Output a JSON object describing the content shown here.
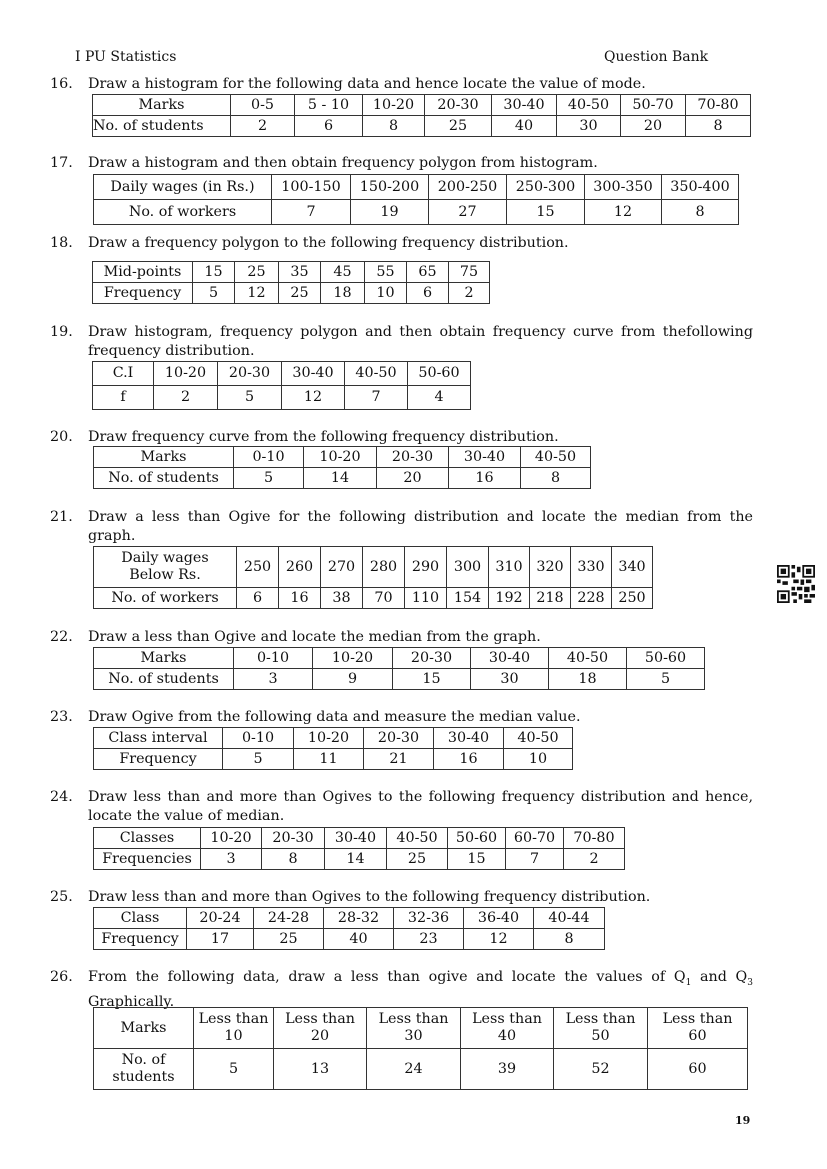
{
  "header": {
    "left": "I PU Statistics",
    "right": "Question Bank"
  },
  "questions": [
    {
      "number": "16.",
      "text": "Draw a histogram for the following data and hence locate the value of mode.",
      "rows": [
        [
          "Marks",
          "0-5",
          "5 - 10",
          "10-20",
          "20-30",
          "30-40",
          "40-50",
          "50-70",
          "70-80"
        ],
        [
          "No.  of  students",
          "2",
          "6",
          "8",
          "25",
          "40",
          "30",
          "20",
          "8"
        ]
      ]
    },
    {
      "number": "17.",
      "text": "Draw a histogram and then obtain frequency polygon from histogram.",
      "rows": [
        [
          "Daily wages (in Rs.)",
          "100-150",
          "150-200",
          "200-250",
          "250-300",
          "300-350",
          "350-400"
        ],
        [
          "No. of workers",
          "7",
          "19",
          "27",
          "15",
          "12",
          "8"
        ]
      ]
    },
    {
      "number": "18.",
      "text": "Draw a frequency polygon to the following frequency distribution.",
      "rows": [
        [
          "Mid-points",
          "15",
          "25",
          "35",
          "45",
          "55",
          "65",
          "75"
        ],
        [
          "Frequency",
          "5",
          "12",
          "25",
          "18",
          "10",
          "6",
          "2"
        ]
      ]
    },
    {
      "number": "19.",
      "text": "Draw histogram, frequency polygon and then obtain frequency curve from thefollowing frequency distribution.",
      "rows": [
        [
          "C.I",
          "10-20",
          "20-30",
          "30-40",
          "40-50",
          "50-60"
        ],
        [
          "f",
          "2",
          "5",
          "12",
          "7",
          "4"
        ]
      ]
    },
    {
      "number": "20.",
      "text": "Draw frequency curve from the following frequency distribution.",
      "rows": [
        [
          "Marks",
          "0-10",
          "10-20",
          "20-30",
          "30-40",
          "40-50"
        ],
        [
          "No. of students",
          "5",
          "14",
          "20",
          "16",
          "8"
        ]
      ]
    },
    {
      "number": "21.",
      "text": "Draw a less than Ogive for the following distribution and locate the median from the graph.",
      "rows": [
        [
          "Daily wages\nBelow Rs.",
          "250",
          "260",
          "270",
          "280",
          "290",
          "300",
          "310",
          "320",
          "330",
          "340"
        ],
        [
          "No. of workers",
          "6",
          "16",
          "38",
          "70",
          "110",
          "154",
          "192",
          "218",
          "228",
          "250"
        ]
      ]
    },
    {
      "number": "22.",
      "text": "Draw a less than Ogive and locate the median from the graph.",
      "rows": [
        [
          "Marks",
          "0-10",
          "10-20",
          "20-30",
          "30-40",
          "40-50",
          "50-60"
        ],
        [
          "No. of students",
          "3",
          "9",
          "15",
          "30",
          "18",
          "5"
        ]
      ]
    },
    {
      "number": "23.",
      "text": "Draw Ogive from the following data and measure the median value.",
      "rows": [
        [
          "Class interval",
          "0-10",
          "10-20",
          "20-30",
          "30-40",
          "40-50"
        ],
        [
          "Frequency",
          "5",
          "11",
          "21",
          "16",
          "10"
        ]
      ]
    },
    {
      "number": "24.",
      "text": "Draw less than and more than Ogives to the following frequency distribution and hence, locate the value of median.",
      "rows": [
        [
          "Classes",
          "10-20",
          "20-30",
          "30-40",
          "40-50",
          "50-60",
          "60-70",
          "70-80"
        ],
        [
          "Frequencies",
          "3",
          "8",
          "14",
          "25",
          "15",
          "7",
          "2"
        ]
      ]
    },
    {
      "number": "25.",
      "text": "Draw less than and more than Ogives to the following frequency distribution.",
      "rows": [
        [
          "Class",
          "20-24",
          "24-28",
          "28-32",
          "32-36",
          "36-40",
          "40-44"
        ],
        [
          "Frequency",
          "17",
          "25",
          "40",
          "23",
          "12",
          "8"
        ]
      ]
    },
    {
      "number": "26.",
      "text_parts": [
        "From the following data, draw a less than ogive and locate the values of Q",
        "1",
        " and Q",
        "3",
        " Graphically."
      ],
      "rows": [
        [
          "Marks",
          "Less than\n10",
          "Less than\n20",
          "Less than\n30",
          "Less than\n40",
          "Less than\n50",
          "Less than\n60"
        ],
        [
          "No. of\nstudents",
          "5",
          "13",
          "24",
          "39",
          "52",
          "60"
        ]
      ]
    }
  ],
  "page_number": "19",
  "qr_icon": "qr-code-icon"
}
